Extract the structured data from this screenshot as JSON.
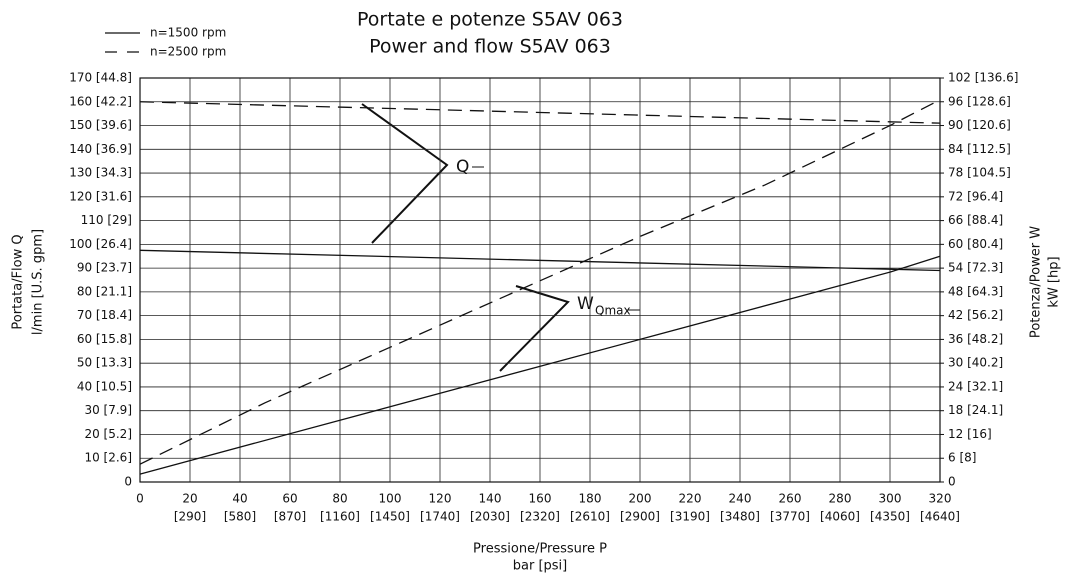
{
  "chart_data": {
    "type": "line",
    "title": "Portate e potenze S5AV 063",
    "subtitle": "Power and flow S5AV 063",
    "x_label": "Pressione/Pressure P",
    "x_unit": "bar [psi]",
    "y_label": "Portata/Flow Q",
    "y_unit": "l/min [U.S. gpm]",
    "y2_label": "Potenza/Power W",
    "y2_unit": "kW [hp]",
    "annotations": [
      {
        "text": "Q"
      },
      {
        "text": "W",
        "subscript": "Qmax"
      }
    ],
    "grid": true,
    "xlim": [
      0,
      320
    ],
    "xticks": [
      0,
      20,
      40,
      60,
      80,
      100,
      120,
      140,
      160,
      180,
      200,
      220,
      240,
      260,
      280,
      300,
      320
    ],
    "xtick_sublabels": [
      null,
      "[290]",
      "[580]",
      "[870]",
      "[1160]",
      "[1450]",
      "[1740]",
      "[2030]",
      "[2320]",
      "[2610]",
      "[2900]",
      "[3190]",
      "[3480]",
      "[3770]",
      "[4060]",
      "[4350]",
      "[4640]"
    ],
    "ylim": [
      0,
      170
    ],
    "yticks": [
      0,
      {
        "value": 10,
        "label": "10 [2.6]"
      },
      {
        "value": 20,
        "label": "20 [5.2]"
      },
      {
        "value": 30,
        "label": "30 [7.9]"
      },
      {
        "value": 40,
        "label": "40 [10.5]"
      },
      {
        "value": 50,
        "label": "50 [13.3]"
      },
      {
        "value": 60,
        "label": "60 [15.8]"
      },
      {
        "value": 70,
        "label": "70 [18.4]"
      },
      {
        "value": 80,
        "label": "80 [21.1]"
      },
      {
        "value": 90,
        "label": "90 [23.7]"
      },
      {
        "value": 100,
        "label": "100 [26.4]"
      },
      {
        "value": 110,
        "label": "110 [29]"
      },
      {
        "value": 120,
        "label": "120 [31.6]"
      },
      {
        "value": 130,
        "label": "130 [34.3]"
      },
      {
        "value": 140,
        "label": "140 [36.9]"
      },
      {
        "value": 150,
        "label": "150 [39.6]"
      },
      {
        "value": 160,
        "label": "160 [42.2]"
      },
      {
        "value": 170,
        "label": "170 [44.8]"
      }
    ],
    "y2lim": [
      0,
      102
    ],
    "y2ticks": [
      0,
      {
        "value": 6,
        "label": "6 [8]"
      },
      {
        "value": 12,
        "label": "12 [16]"
      },
      {
        "value": 18,
        "label": "18 [24.1]"
      },
      {
        "value": 24,
        "label": "24 [32.1]"
      },
      {
        "value": 30,
        "label": "30 [40.2]"
      },
      {
        "value": 36,
        "label": "36 [48.2]"
      },
      {
        "value": 42,
        "label": "42 [56.2]"
      },
      {
        "value": 48,
        "label": "48 [64.3]"
      },
      {
        "value": 54,
        "label": "54 [72.3]"
      },
      {
        "value": 60,
        "label": "60 [80.4]"
      },
      {
        "value": 66,
        "label": "66 [88.4]"
      },
      {
        "value": 72,
        "label": "72 [96.4]"
      },
      {
        "value": 78,
        "label": "78 [104.5]"
      },
      {
        "value": 84,
        "label": "84 [112.5]"
      },
      {
        "value": 90,
        "label": "90 [120.6]"
      },
      {
        "value": 96,
        "label": "96 [128.6]"
      },
      {
        "value": 102,
        "label": "102 [136.6]"
      }
    ],
    "series": [
      {
        "name": "n=1500 rpm",
        "color": "#111111",
        "dashed": false,
        "x": [
          0,
          320
        ],
        "values": [
          97.5,
          89
        ]
      },
      {
        "name": "n=2500 rpm",
        "color": "#111111",
        "dashed": true,
        "x": [
          0,
          320
        ],
        "values": [
          160,
          151
        ]
      },
      {
        "color": "#111111",
        "dashed": false,
        "axis": "y2",
        "x": [
          0,
          100,
          200,
          300,
          320
        ],
        "values": [
          2,
          19,
          36,
          53,
          57
        ]
      },
      {
        "color": "#111111",
        "dashed": true,
        "axis": "y2",
        "x": [
          0,
          50,
          100,
          150,
          200,
          250,
          300,
          320
        ],
        "values": [
          4.5,
          20,
          34,
          48,
          62,
          75,
          90,
          96.5
        ]
      }
    ]
  }
}
